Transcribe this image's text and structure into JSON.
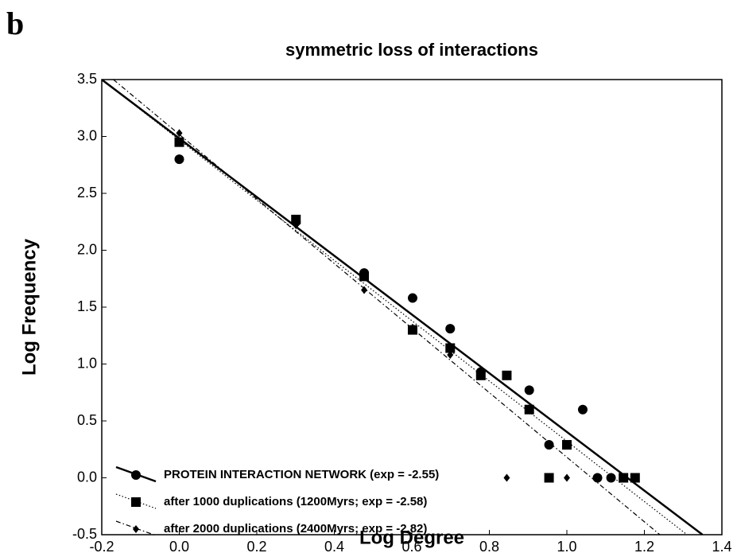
{
  "chart_data": {
    "type": "scatter",
    "panel": "b",
    "title": "symmetric loss of interactions",
    "x_label": "Log Degree",
    "y_label": "Log Frequency",
    "xlim": [
      -0.2,
      1.4
    ],
    "ylim": [
      -0.5,
      3.5
    ],
    "xticks": [
      {
        "value": -0.2,
        "label": "-0.2"
      },
      {
        "value": 0,
        "label": "0.0"
      },
      0.2,
      0.4,
      0.6,
      0.8,
      {
        "value": 1,
        "label": "1.0"
      },
      1.2,
      1.4
    ],
    "yticks": [
      -0.5,
      {
        "value": 0,
        "label": "0.0"
      },
      0.5,
      {
        "value": 1,
        "label": "1.0"
      },
      1.5,
      {
        "value": 2,
        "label": "2.0"
      },
      2.5,
      {
        "value": 3,
        "label": "3.0"
      },
      3.5
    ],
    "legend": "lower left",
    "series": [
      {
        "name": "PROTEIN INTERACTION NETWORK (exp = -2.55)",
        "marker": "circle",
        "line": "solid",
        "color": "#000000",
        "x": [
          0,
          0.301,
          0.477,
          0.602,
          0.699,
          0.778,
          0.903,
          0.954,
          1.041,
          1.079,
          1.114
        ],
        "values": [
          2.8,
          2.25,
          1.8,
          1.58,
          1.31,
          0.93,
          0.77,
          0.29,
          0.6,
          0,
          0
        ],
        "fit_x": [
          -0.2,
          1.35
        ],
        "fit_y": [
          3.5,
          -0.5
        ]
      },
      {
        "name": "after 1000 duplications (1200Myrs; exp = -2.58)",
        "marker": "square",
        "line": "dotted",
        "color": "#000000",
        "x": [
          0,
          0.301,
          0.477,
          0.602,
          0.699,
          0.778,
          0.845,
          0.903,
          0.954,
          1.0,
          1.146,
          1.176
        ],
        "values": [
          2.95,
          2.27,
          1.77,
          1.3,
          1.14,
          0.9,
          0.9,
          0.6,
          0,
          0.29,
          0,
          0
        ],
        "fit_x": [
          -0.2,
          1.31
        ],
        "fit_y": [
          3.5,
          -0.5
        ]
      },
      {
        "name": "after 2000 duplications (2400Myrs; exp = -2.82)",
        "marker": "diamond",
        "line": "dashdot",
        "color": "#000000",
        "x": [
          0,
          0.301,
          0.477,
          0.602,
          0.699,
          0.778,
          0.845,
          1.0
        ],
        "values": [
          3.03,
          2.22,
          1.65,
          1.32,
          1.08,
          0.93,
          0,
          0
        ],
        "fit_x": [
          -0.17,
          1.24
        ],
        "fit_y": [
          3.5,
          -0.5
        ]
      }
    ]
  }
}
